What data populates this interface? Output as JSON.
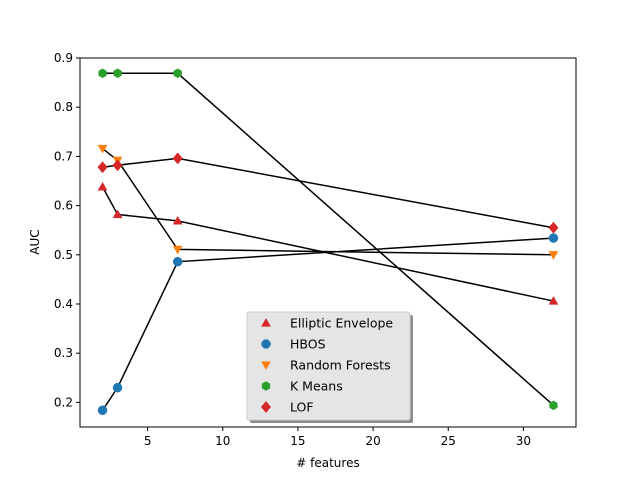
{
  "chart_data": {
    "type": "scatter",
    "title": "",
    "xlabel": "# features",
    "ylabel": "AUC",
    "xlim": [
      0.5,
      33.5
    ],
    "ylim": [
      0.15,
      0.9
    ],
    "x_ticks": [
      5,
      10,
      15,
      20,
      25,
      30
    ],
    "y_ticks": [
      0.2,
      0.3,
      0.4,
      0.5,
      0.6,
      0.7,
      0.8,
      0.9
    ],
    "x_tick_labels": [
      "5",
      "10",
      "15",
      "20",
      "25",
      "30"
    ],
    "y_tick_labels": [
      "0.2",
      "0.3",
      "0.4",
      "0.5",
      "0.6",
      "0.7",
      "0.8",
      "0.9"
    ],
    "grid": false,
    "legend_position": "bottom-center",
    "line_color": "#000000",
    "series": [
      {
        "name": "Elliptic Envelope",
        "marker": "triangle-up",
        "color": "#d62728",
        "x": [
          2,
          3,
          7,
          32
        ],
        "y": [
          0.638,
          0.582,
          0.569,
          0.406
        ]
      },
      {
        "name": "HBOS",
        "marker": "circle",
        "color": "#1f77b4",
        "x": [
          2,
          3,
          7,
          32
        ],
        "y": [
          0.184,
          0.23,
          0.486,
          0.534
        ]
      },
      {
        "name": "Random Forests",
        "marker": "triangle-down",
        "color": "#ff7f0e",
        "x": [
          2,
          3,
          7,
          32
        ],
        "y": [
          0.716,
          0.692,
          0.511,
          0.5
        ]
      },
      {
        "name": "K Means",
        "marker": "hexagon",
        "color": "#2ca02c",
        "x": [
          2,
          3,
          7,
          32
        ],
        "y": [
          0.869,
          0.869,
          0.869,
          0.194
        ]
      },
      {
        "name": "LOF",
        "marker": "diamond",
        "color": "#d62728",
        "x": [
          2,
          3,
          7,
          32
        ],
        "y": [
          0.678,
          0.682,
          0.696,
          0.555
        ]
      }
    ]
  }
}
